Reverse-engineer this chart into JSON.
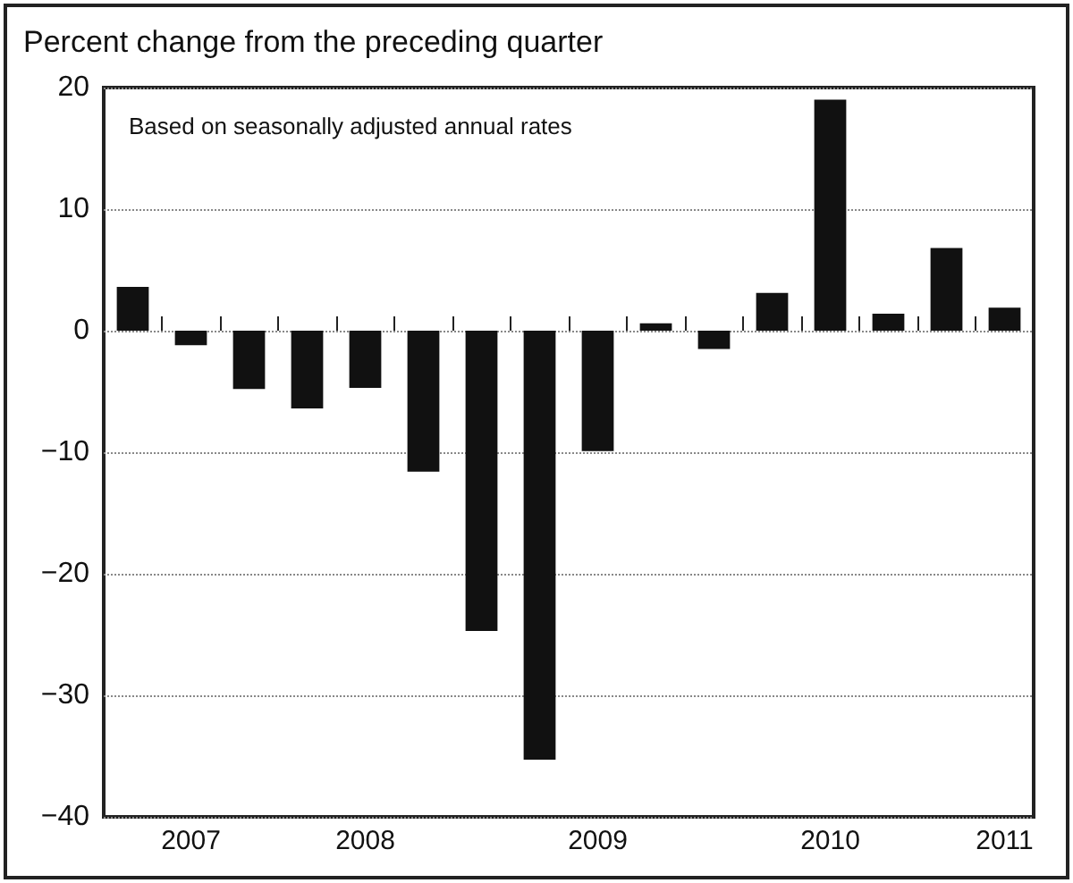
{
  "chart_data": {
    "type": "bar",
    "title": "Percent change from the preceding quarter",
    "annotations": [
      "Based on seasonally adjusted annual rates"
    ],
    "categories": [
      null,
      "2007",
      null,
      null,
      "2008",
      null,
      null,
      null,
      "2009",
      null,
      null,
      null,
      "2010",
      null,
      null,
      "2011"
    ],
    "values": [
      3.6,
      -1.2,
      -4.8,
      -6.4,
      -4.7,
      -11.6,
      -24.7,
      -35.3,
      -9.9,
      0.6,
      -1.5,
      3.1,
      19,
      1.4,
      6.8,
      1.9
    ],
    "color": "#111111",
    "ylim": [
      -40,
      20
    ],
    "yticks": [
      -40,
      -30,
      -20,
      -10,
      0,
      10,
      20
    ],
    "grid": "y"
  }
}
